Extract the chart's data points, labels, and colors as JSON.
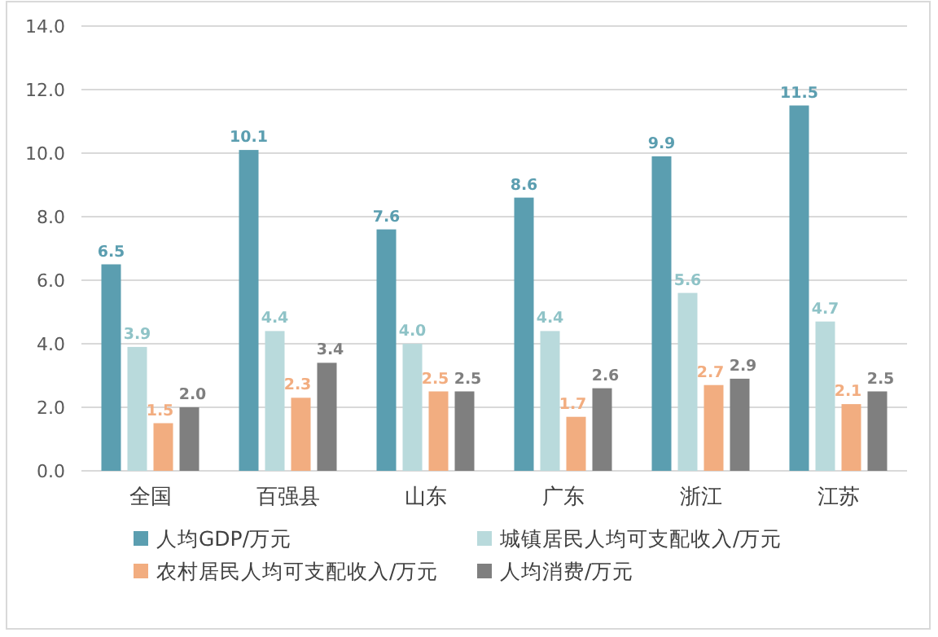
{
  "chart_data": {
    "type": "bar",
    "categories": [
      "全国",
      "百强县",
      "山东",
      "广东",
      "浙江",
      "江苏"
    ],
    "series": [
      {
        "name": "人均GDP/万元",
        "color": "#5b9eb0",
        "values": [
          6.5,
          10.1,
          7.6,
          8.6,
          9.9,
          11.5
        ],
        "value_labels": [
          "6.5",
          "10.1",
          "7.6",
          "8.6",
          "9.9",
          "11.5"
        ]
      },
      {
        "name": "城镇居民人均可支配收入/万元",
        "color": "#b9dadc",
        "values": [
          3.9,
          4.4,
          4.0,
          4.4,
          5.6,
          4.7
        ],
        "value_labels": [
          "3.9",
          "4.4",
          "4.0",
          "4.4",
          "5.6",
          "4.7"
        ]
      },
      {
        "name": "农村居民人均可支配收入/万元",
        "color": "#f2ad80",
        "values": [
          1.5,
          2.3,
          2.5,
          1.7,
          2.7,
          2.1
        ],
        "value_labels": [
          "1.5",
          "2.3",
          "2.5",
          "1.7",
          "2.7",
          "2.1"
        ]
      },
      {
        "name": "人均消费/万元",
        "color": "#7f7f7f",
        "values": [
          2.0,
          3.4,
          2.5,
          2.6,
          2.9,
          2.5
        ],
        "value_labels": [
          "2.0",
          "3.4",
          "2.5",
          "2.6",
          "2.9",
          "2.5"
        ]
      }
    ],
    "ylim": [
      0,
      14
    ],
    "yticks": [
      {
        "value": 0,
        "label": "0.0"
      },
      {
        "value": 2,
        "label": "2.0"
      },
      {
        "value": 4,
        "label": "4.0"
      },
      {
        "value": 6,
        "label": "6.0"
      },
      {
        "value": 8,
        "label": "8.0"
      },
      {
        "value": 10,
        "label": "10.0"
      },
      {
        "value": 12,
        "label": "12.0"
      },
      {
        "value": 14,
        "label": "14.0"
      }
    ],
    "grid": "y",
    "legend": "bottom"
  }
}
